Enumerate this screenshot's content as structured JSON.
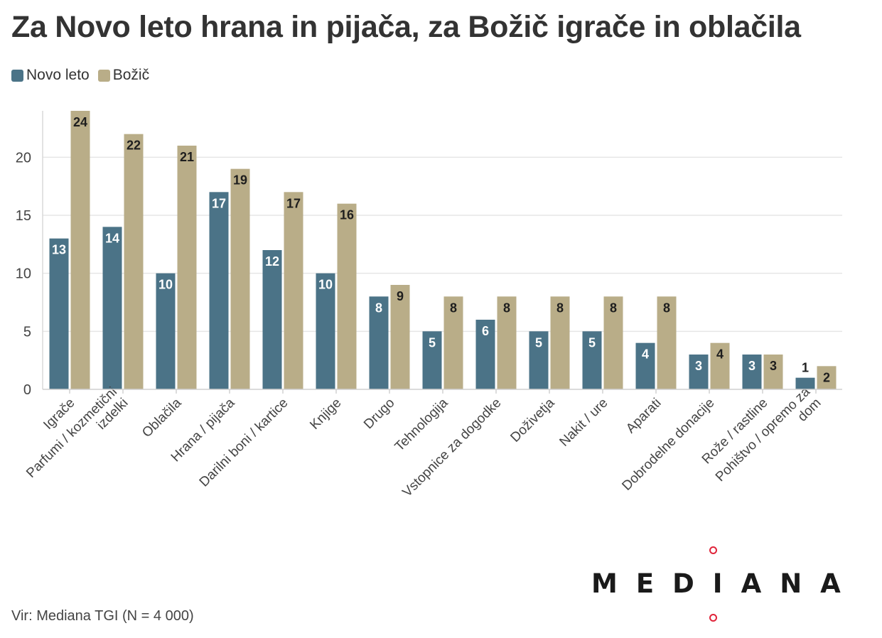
{
  "title": "Za Novo leto hrana in pijača, za Božič igrače in oblačila",
  "legend": [
    {
      "label": "Novo leto",
      "color": "#4b7387"
    },
    {
      "label": "Božič",
      "color": "#b9ad88"
    }
  ],
  "chart_data": {
    "type": "bar",
    "title": "Za Novo leto hrana in pijača, za Božič igrače in oblačila",
    "xlabel": "",
    "ylabel": "",
    "ylim": [
      0,
      24
    ],
    "yticks": [
      0,
      5,
      10,
      15,
      20
    ],
    "grid": true,
    "legend_position": "top-left",
    "categories": [
      "Igrače",
      "Parfumi / kozmetični izdelki",
      "Oblačila",
      "Hrana / pijača",
      "Darilni boni / kartice",
      "Knjige",
      "Drugo",
      "Tehnologija",
      "Vstopnice za dogodke",
      "Doživetja",
      "Nakit / ure",
      "Aparati",
      "Dobrodelne donacije",
      "Rože / rastline",
      "Pohištvo / opremo za dom"
    ],
    "category_labels": [
      [
        "Igrače"
      ],
      [
        "Parfumi / kozmetični",
        "izdelki"
      ],
      [
        "Oblačila"
      ],
      [
        "Hrana / pijača"
      ],
      [
        "Darilni boni / kartice"
      ],
      [
        "Knjige"
      ],
      [
        "Drugo"
      ],
      [
        "Tehnologija"
      ],
      [
        "Vstopnice za dogodke"
      ],
      [
        "Doživetja"
      ],
      [
        "Nakit / ure"
      ],
      [
        "Aparati"
      ],
      [
        "Dobrodelne donacije"
      ],
      [
        "Rože / rastline"
      ],
      [
        "Pohištvo / opremo za",
        "dom"
      ]
    ],
    "series": [
      {
        "name": "Novo leto",
        "color": "#4b7387",
        "values": [
          13,
          14,
          10,
          17,
          12,
          10,
          8,
          5,
          6,
          5,
          5,
          4,
          3,
          3,
          1
        ]
      },
      {
        "name": "Božič",
        "color": "#b9ad88",
        "values": [
          24,
          22,
          21,
          19,
          17,
          16,
          9,
          8,
          8,
          8,
          8,
          8,
          4,
          3,
          2
        ]
      }
    ]
  },
  "source": "Vir: Mediana TGI (N = 4 000)",
  "logo": "MEDIANA"
}
